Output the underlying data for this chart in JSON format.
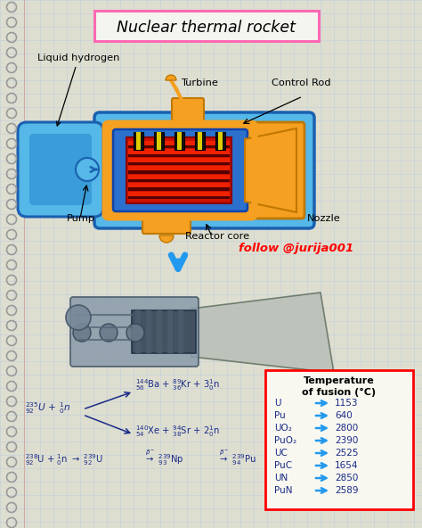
{
  "title": "Nuclear thermal rocket",
  "bg_color": "#deded0",
  "grid_color": "#b8cce0",
  "title_box_color": "#ff69b4",
  "labels": {
    "liquid_hydrogen": "Liquid hydrogen",
    "turbine": "Turbine",
    "control_rod": "Control Rod",
    "pump": "Pump",
    "reactor_core": "Reactor core",
    "nozzle": "Nozzle",
    "follow": "follow @jurija001"
  },
  "temp_table": {
    "title_line1": "Temperature",
    "title_line2": "of fusion (°C)",
    "entries": [
      [
        "U",
        "1153"
      ],
      [
        "Pu",
        "640"
      ],
      [
        "UO₂",
        "2800"
      ],
      [
        "PuO₂",
        "2390"
      ],
      [
        "UC",
        "2525"
      ],
      [
        "PuC",
        "1654"
      ],
      [
        "UN",
        "2850"
      ],
      [
        "PuN",
        "2589"
      ]
    ]
  }
}
